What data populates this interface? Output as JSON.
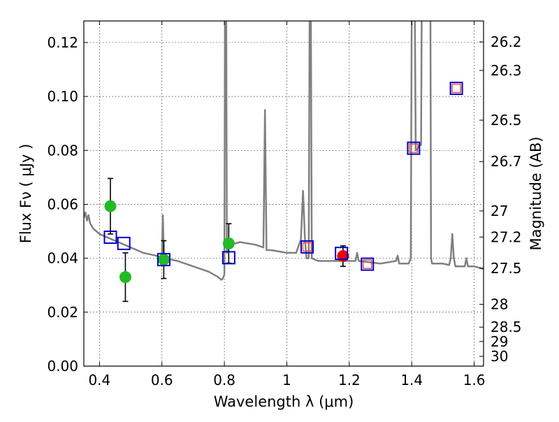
{
  "chart_data": {
    "type": "scatter",
    "xlabel": "Wavelength  λ (μm)",
    "ylabel": "Flux  Fν  ( μJy )",
    "ylabel_right": "Magnitude (AB)",
    "xlim": [
      0.35,
      1.63
    ],
    "ylim": [
      0.0,
      0.128
    ],
    "grid": true,
    "x_ticks": [
      {
        "value": 0.4,
        "label": "0.4"
      },
      {
        "value": 0.6,
        "label": "0.6"
      },
      {
        "value": 0.8,
        "label": "0.8"
      },
      {
        "value": 1.0,
        "label": "1"
      },
      {
        "value": 1.2,
        "label": "1.2"
      },
      {
        "value": 1.4,
        "label": "1.4"
      },
      {
        "value": 1.6,
        "label": "1.6"
      }
    ],
    "y_ticks": [
      {
        "value": 0.0,
        "label": "0.00"
      },
      {
        "value": 0.02,
        "label": "0.02"
      },
      {
        "value": 0.04,
        "label": "0.04"
      },
      {
        "value": 0.06,
        "label": "0.06"
      },
      {
        "value": 0.08,
        "label": "0.08"
      },
      {
        "value": 0.1,
        "label": "0.10"
      },
      {
        "value": 0.12,
        "label": "0.12"
      }
    ],
    "mag_ticks": [
      {
        "value": 26.2,
        "label": "26.2"
      },
      {
        "value": 26.3,
        "label": "26.3"
      },
      {
        "value": 26.5,
        "label": "26.5"
      },
      {
        "value": 26.7,
        "label": "26.7"
      },
      {
        "value": 27.0,
        "label": "27"
      },
      {
        "value": 27.2,
        "label": "27.2"
      },
      {
        "value": 27.5,
        "label": "27.5"
      },
      {
        "value": 28.0,
        "label": "28"
      },
      {
        "value": 28.5,
        "label": "28.5"
      },
      {
        "value": 29.0,
        "label": "29"
      },
      {
        "value": 30.0,
        "label": "30"
      }
    ],
    "series": [
      {
        "name": "model SED",
        "style": "line",
        "color": "#808080",
        "points": [
          [
            0.35,
            0.055
          ],
          [
            0.355,
            0.057
          ],
          [
            0.36,
            0.054
          ],
          [
            0.365,
            0.056
          ],
          [
            0.37,
            0.053
          ],
          [
            0.38,
            0.051
          ],
          [
            0.39,
            0.05
          ],
          [
            0.4,
            0.049
          ],
          [
            0.42,
            0.048
          ],
          [
            0.44,
            0.047
          ],
          [
            0.46,
            0.046
          ],
          [
            0.48,
            0.045
          ],
          [
            0.5,
            0.044
          ],
          [
            0.52,
            0.043
          ],
          [
            0.54,
            0.042
          ],
          [
            0.56,
            0.0415
          ],
          [
            0.58,
            0.041
          ],
          [
            0.595,
            0.0405
          ],
          [
            0.6,
            0.041
          ],
          [
            0.603,
            0.056
          ],
          [
            0.606,
            0.041
          ],
          [
            0.61,
            0.04
          ],
          [
            0.65,
            0.039
          ],
          [
            0.7,
            0.037
          ],
          [
            0.75,
            0.035
          ],
          [
            0.78,
            0.033
          ],
          [
            0.79,
            0.032
          ],
          [
            0.795,
            0.0325
          ],
          [
            0.8,
            0.034
          ],
          [
            0.802,
            0.13
          ],
          [
            0.806,
            0.13
          ],
          [
            0.808,
            0.042
          ],
          [
            0.82,
            0.045
          ],
          [
            0.85,
            0.046
          ],
          [
            0.9,
            0.045
          ],
          [
            0.925,
            0.044
          ],
          [
            0.93,
            0.095
          ],
          [
            0.935,
            0.043
          ],
          [
            0.95,
            0.043
          ],
          [
            1.0,
            0.042
          ],
          [
            1.03,
            0.042
          ],
          [
            1.045,
            0.047
          ],
          [
            1.052,
            0.065
          ],
          [
            1.058,
            0.047
          ],
          [
            1.063,
            0.04
          ],
          [
            1.066,
            0.04
          ],
          [
            1.07,
            0.04
          ],
          [
            1.073,
            0.13
          ],
          [
            1.077,
            0.13
          ],
          [
            1.08,
            0.04
          ],
          [
            1.1,
            0.039
          ],
          [
            1.15,
            0.039
          ],
          [
            1.2,
            0.039
          ],
          [
            1.22,
            0.039
          ],
          [
            1.225,
            0.042
          ],
          [
            1.23,
            0.039
          ],
          [
            1.3,
            0.038
          ],
          [
            1.35,
            0.039
          ],
          [
            1.355,
            0.041
          ],
          [
            1.36,
            0.038
          ],
          [
            1.39,
            0.038
          ],
          [
            1.397,
            0.04
          ],
          [
            1.4,
            0.13
          ],
          [
            1.41,
            0.13
          ],
          [
            1.413,
            0.08
          ],
          [
            1.416,
            0.08
          ],
          [
            1.42,
            0.081
          ],
          [
            1.425,
            0.082
          ],
          [
            1.43,
            0.082
          ],
          [
            1.432,
            0.13
          ],
          [
            1.46,
            0.13
          ],
          [
            1.462,
            0.04
          ],
          [
            1.465,
            0.038
          ],
          [
            1.5,
            0.038
          ],
          [
            1.52,
            0.0375
          ],
          [
            1.525,
            0.04
          ],
          [
            1.53,
            0.049
          ],
          [
            1.535,
            0.04
          ],
          [
            1.54,
            0.037
          ],
          [
            1.57,
            0.037
          ],
          [
            1.575,
            0.04
          ],
          [
            1.58,
            0.037
          ],
          [
            1.6,
            0.037
          ],
          [
            1.63,
            0.036
          ]
        ]
      },
      {
        "name": "observed (green, with error bars)",
        "style": "circle",
        "color": "#22bb22",
        "points": [
          {
            "x": 0.435,
            "y": 0.0593,
            "err": 0.0103
          },
          {
            "x": 0.483,
            "y": 0.033,
            "err": 0.009
          },
          {
            "x": 0.606,
            "y": 0.0395,
            "err": 0.007
          },
          {
            "x": 0.814,
            "y": 0.0455,
            "err": 0.0073
          }
        ]
      },
      {
        "name": "observed (red, with error bars)",
        "style": "circle",
        "color": "#ee0000",
        "points": [
          {
            "x": 1.18,
            "y": 0.0408,
            "err": 0.0038
          }
        ]
      },
      {
        "name": "model photometry (blue squares)",
        "style": "square",
        "color": "#0000cc",
        "points": [
          [
            0.435,
            0.0478
          ],
          [
            0.478,
            0.0455
          ],
          [
            0.606,
            0.0395
          ],
          [
            0.814,
            0.0402
          ],
          [
            1.065,
            0.0442
          ],
          [
            1.175,
            0.0418
          ],
          [
            1.258,
            0.0378
          ],
          [
            1.406,
            0.0808
          ],
          [
            1.543,
            0.103
          ]
        ]
      },
      {
        "name": "observed (red open squares)",
        "style": "open-square",
        "color": "#ee3333",
        "points": [
          [
            1.065,
            0.0442
          ],
          [
            1.258,
            0.0378
          ],
          [
            1.406,
            0.0808
          ],
          [
            1.543,
            0.103
          ]
        ]
      }
    ]
  }
}
